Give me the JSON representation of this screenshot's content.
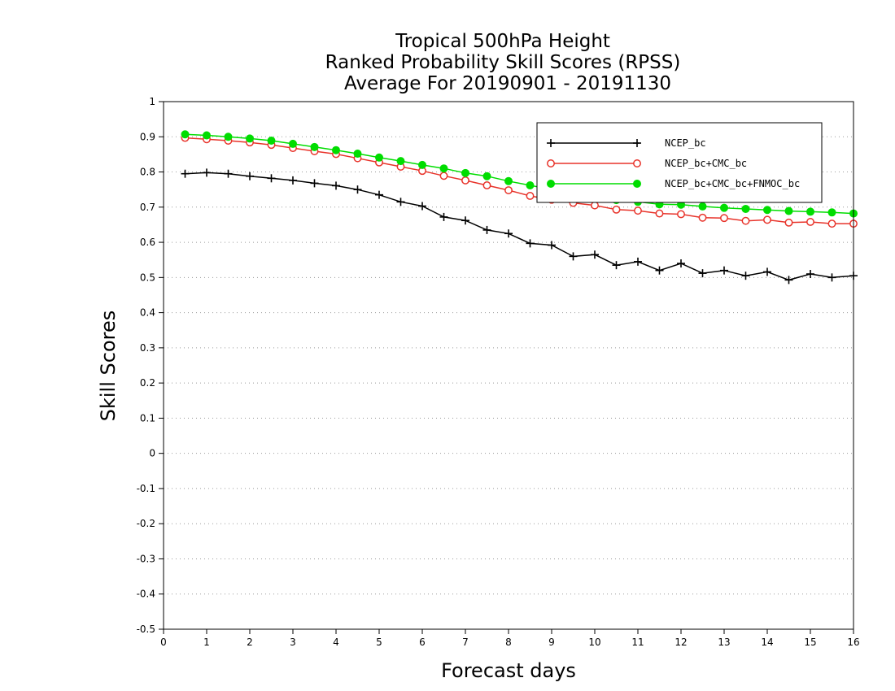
{
  "chart_data": {
    "type": "line",
    "title": [
      "Tropical 500hPa Height",
      "Ranked Probability Skill Scores (RPSS)",
      "Average For 20190901 - 20191130"
    ],
    "xlabel": "Forecast days",
    "ylabel": "Skill Scores",
    "xlim": [
      0,
      16
    ],
    "ylim": [
      -0.5,
      1
    ],
    "xticks": [
      "0",
      "1",
      "2",
      "3",
      "4",
      "5",
      "6",
      "7",
      "8",
      "9",
      "10",
      "11",
      "12",
      "13",
      "14",
      "15",
      "16"
    ],
    "yticks": [
      "1",
      "0.9",
      "0.8",
      "0.7",
      "0.6",
      "0.5",
      "0.4",
      "0.3",
      "0.2",
      "0.1",
      "0",
      "-0.1",
      "-0.2",
      "-0.3",
      "-0.4",
      "-0.5"
    ],
    "grid": "horizontal dotted",
    "legend_position": "top-right",
    "x": [
      0.5,
      1,
      1.5,
      2,
      2.5,
      3,
      3.5,
      4,
      4.5,
      5,
      5.5,
      6,
      6.5,
      7,
      7.5,
      8,
      8.5,
      9,
      9.5,
      10,
      10.5,
      11,
      11.5,
      12,
      12.5,
      13,
      13.5,
      14,
      14.5,
      15,
      15.5,
      16
    ],
    "series": [
      {
        "name": "NCEP_bc",
        "color": "#000000",
        "marker": "plus",
        "values": [
          0.795,
          0.798,
          0.795,
          0.788,
          0.782,
          0.776,
          0.768,
          0.761,
          0.75,
          0.735,
          0.715,
          0.703,
          0.672,
          0.662,
          0.635,
          0.625,
          0.597,
          0.592,
          0.56,
          0.565,
          0.535,
          0.545,
          0.52,
          0.54,
          0.512,
          0.52,
          0.505,
          0.516,
          0.493,
          0.51,
          0.5,
          0.505
        ]
      },
      {
        "name": "NCEP_bc+CMC_bc",
        "color": "#e8332a",
        "marker": "open-circle",
        "values": [
          0.897,
          0.893,
          0.889,
          0.884,
          0.877,
          0.868,
          0.859,
          0.851,
          0.839,
          0.827,
          0.815,
          0.803,
          0.789,
          0.776,
          0.762,
          0.748,
          0.732,
          0.721,
          0.712,
          0.705,
          0.693,
          0.69,
          0.682,
          0.68,
          0.67,
          0.669,
          0.661,
          0.664,
          0.656,
          0.658,
          0.653,
          0.653
        ]
      },
      {
        "name": "NCEP_bc+CMC_bc+FNMOC_bc",
        "color": "#00dd00",
        "marker": "filled-circle",
        "values": [
          0.907,
          0.904,
          0.9,
          0.895,
          0.889,
          0.88,
          0.871,
          0.862,
          0.852,
          0.841,
          0.831,
          0.82,
          0.81,
          0.797,
          0.788,
          0.774,
          0.762,
          0.75,
          0.738,
          0.732,
          0.72,
          0.715,
          0.708,
          0.707,
          0.702,
          0.698,
          0.695,
          0.692,
          0.689,
          0.687,
          0.685,
          0.682
        ]
      }
    ]
  }
}
